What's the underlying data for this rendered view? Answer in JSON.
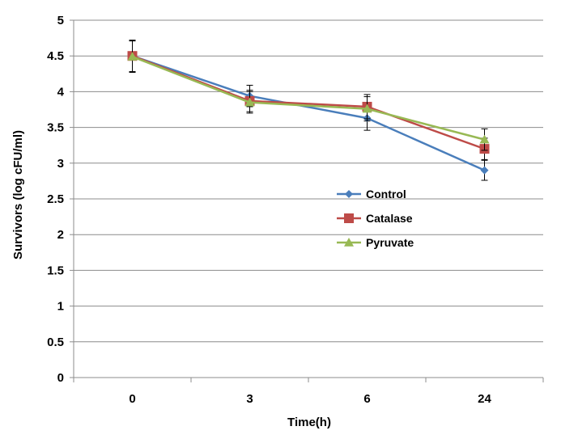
{
  "chart_data": {
    "type": "line",
    "title": "",
    "xlabel": "Time(h)",
    "ylabel": "Survivors (log cFU/ml)",
    "categories": [
      "0",
      "3",
      "6",
      "24"
    ],
    "ylim": [
      0,
      5
    ],
    "yticks": [
      "0",
      "0.5",
      "1",
      "1.5",
      "2",
      "2.5",
      "3",
      "3.5",
      "4",
      "4.5",
      "5"
    ],
    "grid": "horizontal",
    "legend_position": "center-right",
    "series": [
      {
        "name": "Control",
        "color": "#4a7ebb",
        "marker": "diamond",
        "values": [
          4.5,
          3.94,
          3.63,
          2.9
        ],
        "errors": [
          0.22,
          0.15,
          0.17,
          0.14
        ]
      },
      {
        "name": "Catalase",
        "color": "#be4b48",
        "marker": "square",
        "values": [
          4.5,
          3.87,
          3.79,
          3.2
        ],
        "errors": [
          0.22,
          0.15,
          0.17,
          0.15
        ]
      },
      {
        "name": "Pyruvate",
        "color": "#98b954",
        "marker": "triangle",
        "values": [
          4.49,
          3.85,
          3.76,
          3.33
        ],
        "errors": [
          0.22,
          0.15,
          0.17,
          0.15
        ]
      }
    ]
  }
}
